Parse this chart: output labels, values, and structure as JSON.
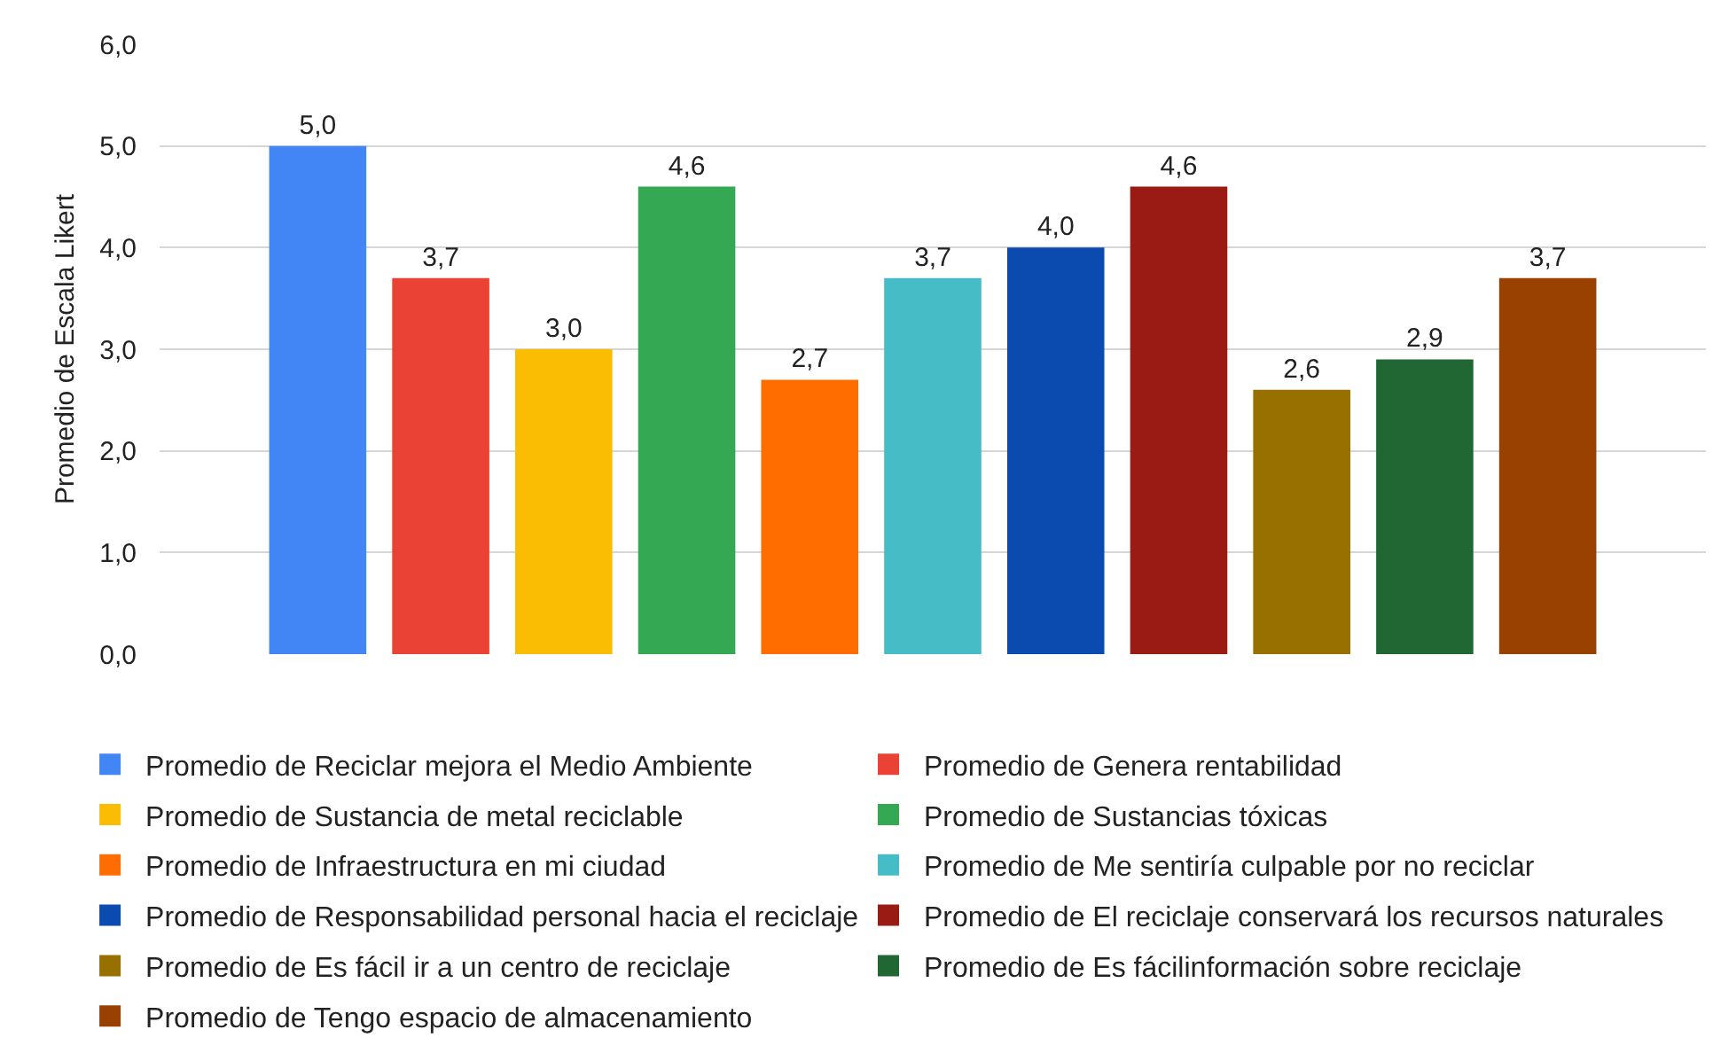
{
  "chart_data": {
    "type": "bar",
    "ylabel": "Promedio de Escala Likert",
    "categories": [
      null
    ],
    "series": [
      {
        "name": "Promedio de Reciclar mejora el Medio Ambiente",
        "color": "#4285f4",
        "values": [
          5.0
        ],
        "value_labels": [
          "5,0"
        ]
      },
      {
        "name": "Promedio de Genera rentabilidad",
        "color": "#ea4335",
        "values": [
          3.7
        ],
        "value_labels": [
          "3,7"
        ]
      },
      {
        "name": "Promedio de Sustancia de metal reciclable",
        "color": "#fbbc04",
        "values": [
          3.0
        ],
        "value_labels": [
          "3,0"
        ]
      },
      {
        "name": "Promedio de Sustancias tóxicas",
        "color": "#34a853",
        "values": [
          4.6
        ],
        "value_labels": [
          "4,6"
        ]
      },
      {
        "name": "Promedio de Infraestructura en mi ciudad",
        "color": "#ff6d01",
        "values": [
          2.7
        ],
        "value_labels": [
          "2,7"
        ]
      },
      {
        "name": "Promedio de Me sentiría culpable por no reciclar",
        "color": "#46bdc6",
        "values": [
          3.7
        ],
        "value_labels": [
          "3,7"
        ]
      },
      {
        "name": "Promedio de Responsabilidad personal hacia el reciclaje",
        "color": "#0b4aae",
        "values": [
          4.0
        ],
        "value_labels": [
          "4,0"
        ]
      },
      {
        "name": "Promedio de El reciclaje conservará los recursos naturales",
        "color": "#991b14",
        "values": [
          4.6
        ],
        "value_labels": [
          "4,6"
        ]
      },
      {
        "name": "Promedio de Es fácil ir a un centro de reciclaje",
        "color": "#977000",
        "values": [
          2.6
        ],
        "value_labels": [
          "2,6"
        ]
      },
      {
        "name": "Promedio de Es fácilinformación sobre reciclaje",
        "color": "#206734",
        "values": [
          2.9
        ],
        "value_labels": [
          "2,9"
        ]
      },
      {
        "name": "Promedio de Tengo espacio de almacenamiento",
        "color": "#994100",
        "values": [
          3.7
        ],
        "value_labels": [
          "3,7"
        ]
      }
    ],
    "ylim": [
      0,
      6
    ],
    "yticks": [
      {
        "value": 0,
        "label": "0,0"
      },
      {
        "value": 1,
        "label": "1,0"
      },
      {
        "value": 2,
        "label": "2,0"
      },
      {
        "value": 3,
        "label": "3,0"
      },
      {
        "value": 4,
        "label": "4,0"
      },
      {
        "value": 5,
        "label": "5,0"
      },
      {
        "value": 6,
        "label": "6,0"
      }
    ],
    "grid": "y",
    "legend": "bottom",
    "tick_labels": "y"
  }
}
